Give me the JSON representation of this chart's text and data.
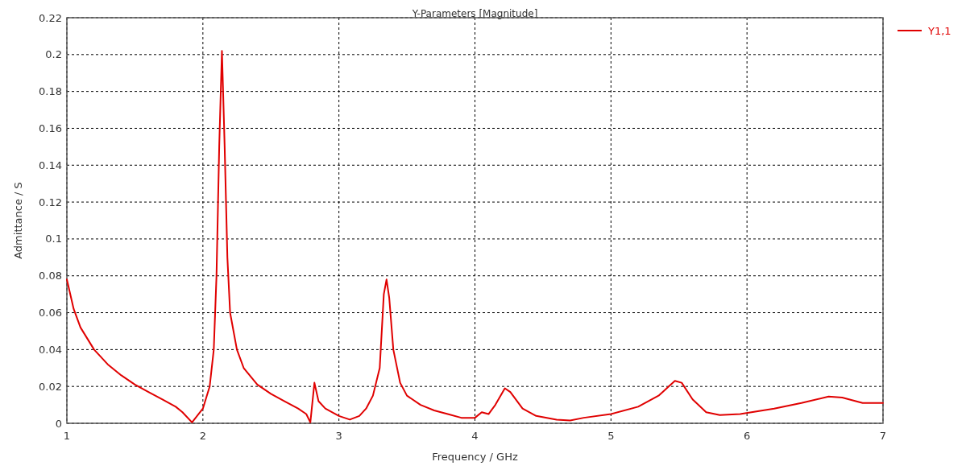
{
  "chart_data": {
    "type": "line",
    "title": "Y-Parameters [Magnitude]",
    "xlabel": "Frequency / GHz",
    "ylabel": "Admittance / S",
    "xlim": [
      1,
      7
    ],
    "xticks": [
      1,
      2,
      3,
      4,
      5,
      6,
      7
    ],
    "ylim": [
      0,
      0.22
    ],
    "yticks": [
      0,
      0.02,
      0.04,
      0.06,
      0.08,
      0.1,
      0.12,
      0.14,
      0.16,
      0.18,
      0.2,
      0.22
    ],
    "grid": true,
    "legend": "top right",
    "marker": "none",
    "line_style": "solid",
    "series": [
      {
        "name": "Y1,1",
        "color": "#e00000",
        "x": [
          1.0,
          1.05,
          1.1,
          1.2,
          1.3,
          1.4,
          1.5,
          1.6,
          1.7,
          1.8,
          1.85,
          1.92,
          2.0,
          2.05,
          2.08,
          2.1,
          2.12,
          2.14,
          2.16,
          2.18,
          2.2,
          2.25,
          2.3,
          2.4,
          2.5,
          2.6,
          2.7,
          2.76,
          2.79,
          2.82,
          2.85,
          2.9,
          3.0,
          3.08,
          3.15,
          3.2,
          3.25,
          3.3,
          3.33,
          3.35,
          3.37,
          3.4,
          3.45,
          3.5,
          3.6,
          3.7,
          3.8,
          3.9,
          4.0,
          4.05,
          4.1,
          4.15,
          4.22,
          4.26,
          4.35,
          4.45,
          4.6,
          4.7,
          4.8,
          5.0,
          5.2,
          5.35,
          5.47,
          5.52,
          5.6,
          5.7,
          5.8,
          5.95,
          6.2,
          6.4,
          6.6,
          6.7,
          6.85,
          7.0
        ],
        "values": [
          0.078,
          0.062,
          0.052,
          0.04,
          0.032,
          0.026,
          0.021,
          0.017,
          0.013,
          0.009,
          0.006,
          0.0005,
          0.008,
          0.02,
          0.04,
          0.08,
          0.15,
          0.202,
          0.15,
          0.09,
          0.06,
          0.04,
          0.03,
          0.021,
          0.016,
          0.012,
          0.008,
          0.005,
          0.0005,
          0.022,
          0.012,
          0.008,
          0.004,
          0.002,
          0.004,
          0.008,
          0.015,
          0.03,
          0.07,
          0.078,
          0.068,
          0.04,
          0.022,
          0.015,
          0.01,
          0.007,
          0.005,
          0.003,
          0.003,
          0.006,
          0.005,
          0.01,
          0.019,
          0.017,
          0.008,
          0.004,
          0.002,
          0.0015,
          0.003,
          0.005,
          0.009,
          0.015,
          0.023,
          0.022,
          0.013,
          0.006,
          0.0045,
          0.005,
          0.008,
          0.011,
          0.0145,
          0.014,
          0.011,
          0.011
        ]
      }
    ]
  }
}
